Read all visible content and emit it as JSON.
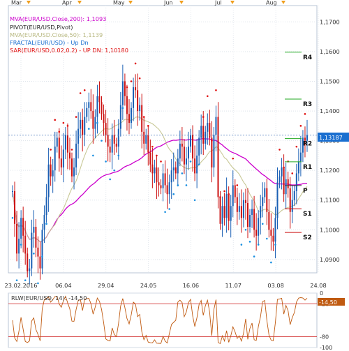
{
  "chart_data": [
    {
      "type": "candlestick",
      "instrument": "EUR/USD",
      "x_ticks": [
        "23.02.2016",
        "06.04",
        "29.04",
        "24.05",
        "16.06",
        "11.07",
        "03.08",
        "24.08"
      ],
      "month_labels": [
        "Mar",
        "Apr",
        "May",
        "Jun",
        "Jul",
        "Aug"
      ],
      "y_ticks": [
        "1,0900",
        "1,1000",
        "1,1100",
        "1,1200",
        "1,1300",
        "1,1400",
        "1,1500",
        "1,1600",
        "1,1700"
      ],
      "ylim": [
        1.0855,
        1.1755
      ],
      "last_price_label": "1,13187",
      "last_price": 1.13187,
      "legend": [
        {
          "text": "MVA(EUR/USD.Close,200): 1,1093",
          "color": "#cc00cc"
        },
        {
          "text": "PIVOT(EUR/USD,Pivot)",
          "color": "#000000"
        },
        {
          "text": "MVA(EUR/USD.Close,50): 1,1139",
          "color": "#c8c896"
        },
        {
          "text": "FRACTAL(EUR/USD) - Up  Dn",
          "color": "#1a6fd0"
        },
        {
          "text": "SAR(EUR/USD,0.02,0.2) - UP  DN: 1,10180",
          "color": "#e01010"
        }
      ],
      "pivot_levels": [
        {
          "name": "R4",
          "value": 1.1598
        },
        {
          "name": "R3",
          "value": 1.144
        },
        {
          "name": "R2",
          "value": 1.1307
        },
        {
          "name": "R1",
          "value": 1.1229
        },
        {
          "name": "P",
          "value": 1.1149
        },
        {
          "name": "S1",
          "value": 1.1071
        },
        {
          "name": "S2",
          "value": 1.0991
        }
      ],
      "closes": [
        1.113,
        1.102,
        1.092,
        1.097,
        1.104,
        1.098,
        1.092,
        1.086,
        1.087,
        1.099,
        1.101,
        1.094,
        1.091,
        1.087,
        1.1,
        1.105,
        1.111,
        1.122,
        1.118,
        1.12,
        1.128,
        1.131,
        1.124,
        1.121,
        1.127,
        1.132,
        1.126,
        1.124,
        1.118,
        1.121,
        1.129,
        1.134,
        1.137,
        1.132,
        1.138,
        1.141,
        1.143,
        1.14,
        1.134,
        1.138,
        1.145,
        1.143,
        1.139,
        1.136,
        1.132,
        1.128,
        1.126,
        1.132,
        1.129,
        1.128,
        1.134,
        1.142,
        1.15,
        1.145,
        1.139,
        1.136,
        1.141,
        1.148,
        1.147,
        1.14,
        1.142,
        1.133,
        1.129,
        1.132,
        1.126,
        1.122,
        1.119,
        1.121,
        1.116,
        1.115,
        1.114,
        1.119,
        1.115,
        1.112,
        1.116,
        1.12,
        1.121,
        1.119,
        1.124,
        1.129,
        1.128,
        1.122,
        1.124,
        1.128,
        1.132,
        1.124,
        1.119,
        1.125,
        1.131,
        1.135,
        1.129,
        1.133,
        1.136,
        1.131,
        1.121,
        1.132,
        1.138,
        1.111,
        1.102,
        1.108,
        1.104,
        1.112,
        1.103,
        1.108,
        1.115,
        1.111,
        1.106,
        1.108,
        1.104,
        1.11,
        1.109,
        1.101,
        1.105,
        1.107,
        1.1,
        1.098,
        1.104,
        1.108,
        1.111,
        1.114,
        1.106,
        1.1,
        1.098,
        1.096,
        1.104,
        1.116,
        1.118,
        1.121,
        1.112,
        1.117,
        1.114,
        1.106,
        1.11,
        1.113,
        1.119,
        1.123,
        1.126,
        1.131,
        1.13,
        1.132
      ],
      "sub_chart": {
        "title": "RLW(EUR/USD, 14): -14,50",
        "y_ticks": [
          "0",
          "-20",
          "-80",
          "-100"
        ],
        "last_label": "-14,50",
        "value": -14.5
      },
      "colors": {
        "up_candle": "#1a5fb4",
        "down_candle": "#cc1111",
        "mva200": "#cc00cc",
        "mva50": "#c8c896",
        "sar": "#e01010",
        "sar_up": "#1a8fe0",
        "pivot": "#22aa22",
        "rlw": "#c05a10"
      }
    }
  ]
}
